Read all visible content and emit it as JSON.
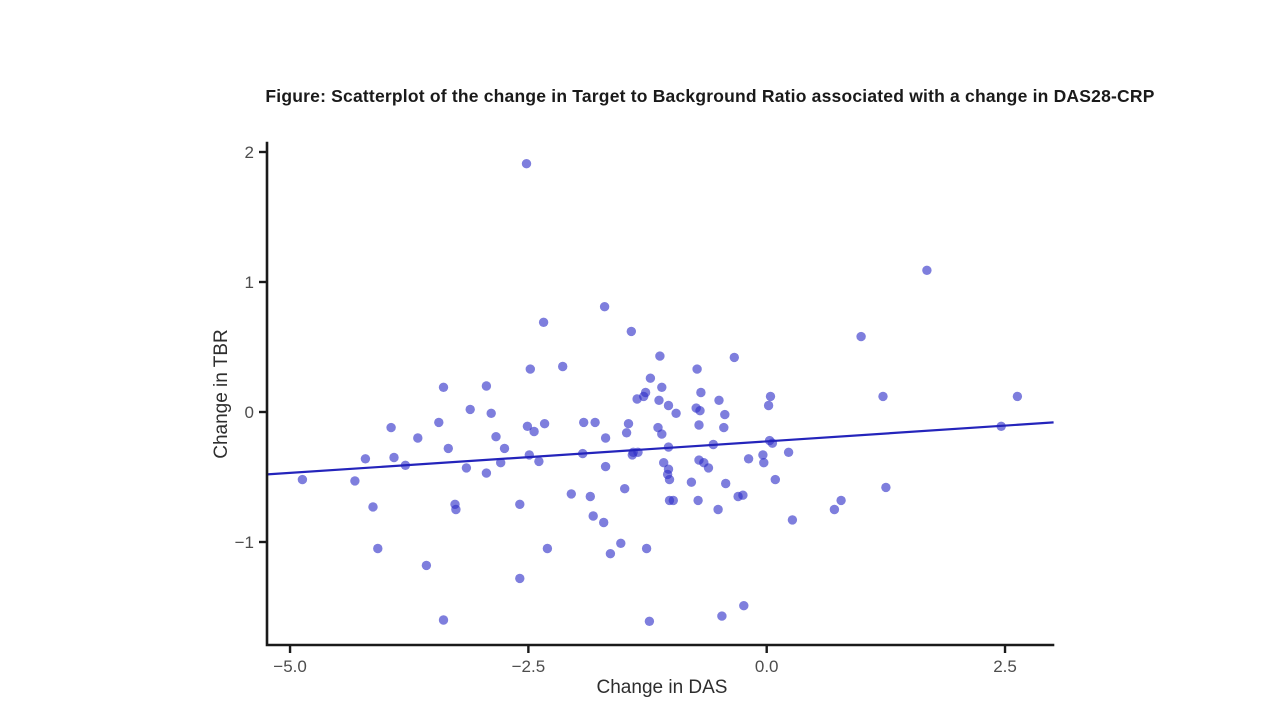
{
  "page": {
    "background": "#ffffff"
  },
  "chart_data": {
    "type": "scatter",
    "title": "Figure: Scatterplot of the change in Target to Background Ratio associated with a change in DAS28-CRP",
    "xlabel": "Change in DAS",
    "ylabel": "Change in TBR",
    "legend": "none",
    "grid": false,
    "xlim": [
      -5.24,
      3.01
    ],
    "ylim": [
      -1.79,
      2.09
    ],
    "x_ticks": {
      "values": [
        -5.0,
        -2.5,
        0.0,
        2.5
      ],
      "labels": [
        "−5.0",
        "−2.5",
        "0.0",
        "2.5"
      ]
    },
    "y_ticks": {
      "values": [
        2,
        1,
        0,
        -1
      ],
      "labels": [
        "2",
        "1",
        "0",
        "−1"
      ]
    },
    "colors": {
      "point": "#2e2ec8",
      "point_opacity": 0.62,
      "trend_line": "#2424bb",
      "axis": "#1a1a1a",
      "tick_label": "#4d4d4d"
    },
    "trend_line": {
      "x": [
        -5.24,
        3.01
      ],
      "y": [
        -0.48,
        -0.08
      ]
    },
    "points": [
      [
        -2.52,
        1.91
      ],
      [
        1.68,
        1.09
      ],
      [
        -1.7,
        0.81
      ],
      [
        -2.34,
        0.69
      ],
      [
        -1.42,
        0.62
      ],
      [
        0.99,
        0.58
      ],
      [
        -1.12,
        0.43
      ],
      [
        -0.34,
        0.42
      ],
      [
        -2.14,
        0.35
      ],
      [
        -2.48,
        0.33
      ],
      [
        -0.73,
        0.33
      ],
      [
        -1.22,
        0.26
      ],
      [
        -3.39,
        0.19
      ],
      [
        -2.94,
        0.2
      ],
      [
        -1.1,
        0.19
      ],
      [
        -1.27,
        0.15
      ],
      [
        -0.69,
        0.15
      ],
      [
        -1.36,
        0.1
      ],
      [
        -1.29,
        0.12
      ],
      [
        -1.13,
        0.09
      ],
      [
        -0.5,
        0.09
      ],
      [
        0.04,
        0.12
      ],
      [
        1.22,
        0.12
      ],
      [
        2.63,
        0.12
      ],
      [
        0.02,
        0.05
      ],
      [
        -1.03,
        0.05
      ],
      [
        -0.95,
        -0.01
      ],
      [
        -0.74,
        0.03
      ],
      [
        -0.7,
        0.01
      ],
      [
        -3.11,
        0.02
      ],
      [
        -2.89,
        -0.01
      ],
      [
        -3.44,
        -0.08
      ],
      [
        -3.94,
        -0.12
      ],
      [
        -3.66,
        -0.2
      ],
      [
        -2.84,
        -0.19
      ],
      [
        -3.34,
        -0.28
      ],
      [
        -2.75,
        -0.28
      ],
      [
        -4.21,
        -0.36
      ],
      [
        -3.91,
        -0.35
      ],
      [
        -3.79,
        -0.41
      ],
      [
        -2.51,
        -0.11
      ],
      [
        -3.15,
        -0.43
      ],
      [
        -2.94,
        -0.47
      ],
      [
        -2.79,
        -0.39
      ],
      [
        -4.87,
        -0.52
      ],
      [
        -4.32,
        -0.53
      ],
      [
        -4.13,
        -0.73
      ],
      [
        -3.27,
        -0.71
      ],
      [
        -3.26,
        -0.75
      ],
      [
        -2.59,
        -0.71
      ],
      [
        -4.08,
        -1.05
      ],
      [
        -3.57,
        -1.18
      ],
      [
        -2.59,
        -1.28
      ],
      [
        -3.39,
        -1.6
      ],
      [
        -2.44,
        -0.15
      ],
      [
        -2.39,
        -0.38
      ],
      [
        -2.49,
        -0.33
      ],
      [
        -2.33,
        -0.09
      ],
      [
        -1.92,
        -0.08
      ],
      [
        -1.8,
        -0.08
      ],
      [
        -1.93,
        -0.32
      ],
      [
        -1.69,
        -0.2
      ],
      [
        -1.47,
        -0.16
      ],
      [
        -1.45,
        -0.09
      ],
      [
        -1.4,
        -0.31
      ],
      [
        -1.35,
        -0.31
      ],
      [
        -1.41,
        -0.33
      ],
      [
        -1.69,
        -0.42
      ],
      [
        -1.14,
        -0.12
      ],
      [
        -1.1,
        -0.17
      ],
      [
        -1.03,
        -0.27
      ],
      [
        -1.08,
        -0.39
      ],
      [
        -1.03,
        -0.44
      ],
      [
        -1.04,
        -0.48
      ],
      [
        -1.02,
        -0.52
      ],
      [
        -1.02,
        -0.68
      ],
      [
        -0.98,
        -0.68
      ],
      [
        -0.71,
        -0.1
      ],
      [
        -0.71,
        -0.37
      ],
      [
        -0.66,
        -0.39
      ],
      [
        -0.61,
        -0.43
      ],
      [
        -0.56,
        -0.25
      ],
      [
        -0.45,
        -0.12
      ],
      [
        -0.44,
        -0.02
      ],
      [
        -0.19,
        -0.36
      ],
      [
        -0.04,
        -0.33
      ],
      [
        -0.03,
        -0.39
      ],
      [
        0.03,
        -0.22
      ],
      [
        0.06,
        -0.24
      ],
      [
        -2.3,
        -1.05
      ],
      [
        -2.05,
        -0.63
      ],
      [
        -1.85,
        -0.65
      ],
      [
        -1.82,
        -0.8
      ],
      [
        -1.71,
        -0.85
      ],
      [
        -1.64,
        -1.09
      ],
      [
        -1.53,
        -1.01
      ],
      [
        -1.26,
        -1.05
      ],
      [
        -1.23,
        -1.61
      ],
      [
        -1.49,
        -0.59
      ],
      [
        -0.79,
        -0.54
      ],
      [
        -0.72,
        -0.68
      ],
      [
        -0.51,
        -0.75
      ],
      [
        -0.43,
        -0.55
      ],
      [
        -0.3,
        -0.65
      ],
      [
        -0.25,
        -0.64
      ],
      [
        -0.24,
        -1.49
      ],
      [
        -0.47,
        -1.57
      ],
      [
        0.09,
        -0.52
      ],
      [
        0.23,
        -0.31
      ],
      [
        0.27,
        -0.83
      ],
      [
        0.71,
        -0.75
      ],
      [
        0.78,
        -0.68
      ],
      [
        1.25,
        -0.58
      ],
      [
        2.46,
        -0.11
      ]
    ]
  }
}
